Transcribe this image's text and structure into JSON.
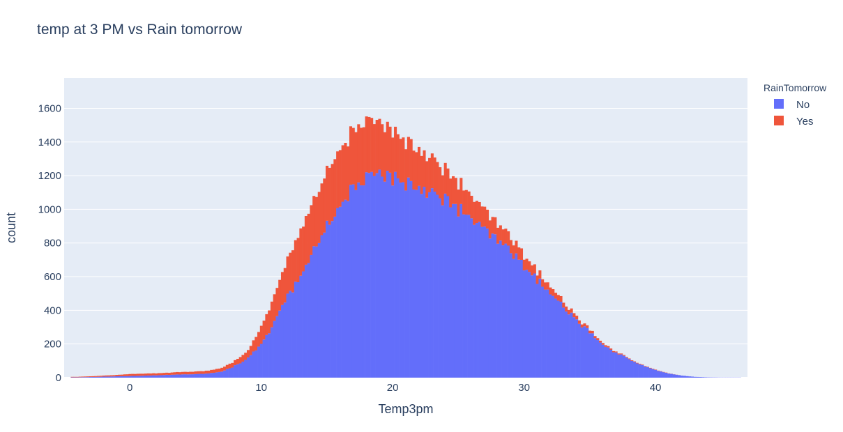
{
  "chart_data": {
    "type": "bar",
    "subtype": "stacked-histogram",
    "title": "temp at 3 PM vs Rain tomorrow",
    "xlabel": "Temp3pm",
    "ylabel": "count",
    "xlim": [
      -5,
      47
    ],
    "ylim": [
      0,
      1780
    ],
    "bin_width": 0.2,
    "x_ticks": [
      0,
      10,
      20,
      30,
      40
    ],
    "y_ticks": [
      0,
      200,
      400,
      600,
      800,
      1000,
      1200,
      1400,
      1600
    ],
    "legend": {
      "title": "RainTomorrow",
      "position": "top-right outside plot",
      "entries": [
        {
          "name": "No",
          "color": "#636efa"
        },
        {
          "name": "Yes",
          "color": "#ef553b"
        }
      ]
    },
    "bins_x": [
      -4,
      -3,
      -2,
      -1,
      0,
      1,
      2,
      3,
      4,
      5,
      6,
      7,
      8,
      9,
      10,
      10.5,
      11,
      11.5,
      12,
      12.5,
      13,
      13.5,
      14,
      14.5,
      15,
      15.5,
      16,
      16.5,
      17,
      17.5,
      18,
      18.5,
      19,
      19.5,
      20,
      20.5,
      21,
      21.5,
      22,
      22.5,
      23,
      23.5,
      24,
      24.5,
      25,
      25.5,
      26,
      26.5,
      27,
      27.5,
      28,
      28.5,
      29,
      29.5,
      30,
      30.5,
      31,
      31.5,
      32,
      32.5,
      33,
      33.5,
      34,
      34.5,
      35,
      35.5,
      36,
      36.5,
      37,
      38,
      39,
      40,
      41,
      42,
      43,
      44,
      45,
      46
    ],
    "series": [
      {
        "name": "No",
        "color": "#636efa",
        "values": [
          2,
          4,
          6,
          8,
          10,
          12,
          14,
          17,
          20,
          21,
          25,
          35,
          70,
          115,
          200,
          260,
          330,
          410,
          480,
          540,
          600,
          680,
          760,
          830,
          900,
          960,
          1030,
          1080,
          1120,
          1150,
          1170,
          1190,
          1205,
          1195,
          1180,
          1170,
          1160,
          1150,
          1135,
          1120,
          1100,
          1080,
          1060,
          1030,
          1000,
          970,
          940,
          900,
          870,
          840,
          810,
          770,
          740,
          700,
          660,
          620,
          580,
          540,
          500,
          460,
          420,
          380,
          340,
          300,
          270,
          230,
          200,
          170,
          150,
          110,
          70,
          45,
          25,
          12,
          5,
          2,
          1,
          1
        ]
      },
      {
        "name": "Yes",
        "color": "#ef553b",
        "values": [
          3,
          4,
          6,
          8,
          12,
          12,
          12,
          13,
          14,
          15,
          17,
          22,
          30,
          45,
          100,
          130,
          160,
          190,
          220,
          245,
          270,
          290,
          300,
          310,
          320,
          330,
          330,
          335,
          340,
          335,
          330,
          320,
          305,
          295,
          275,
          265,
          250,
          240,
          225,
          215,
          200,
          190,
          175,
          165,
          155,
          145,
          135,
          125,
          115,
          105,
          95,
          90,
          80,
          75,
          65,
          60,
          52,
          45,
          40,
          35,
          30,
          26,
          22,
          18,
          15,
          12,
          10,
          8,
          6,
          4,
          3,
          2,
          1,
          0,
          0,
          0,
          0,
          0
        ]
      }
    ]
  }
}
